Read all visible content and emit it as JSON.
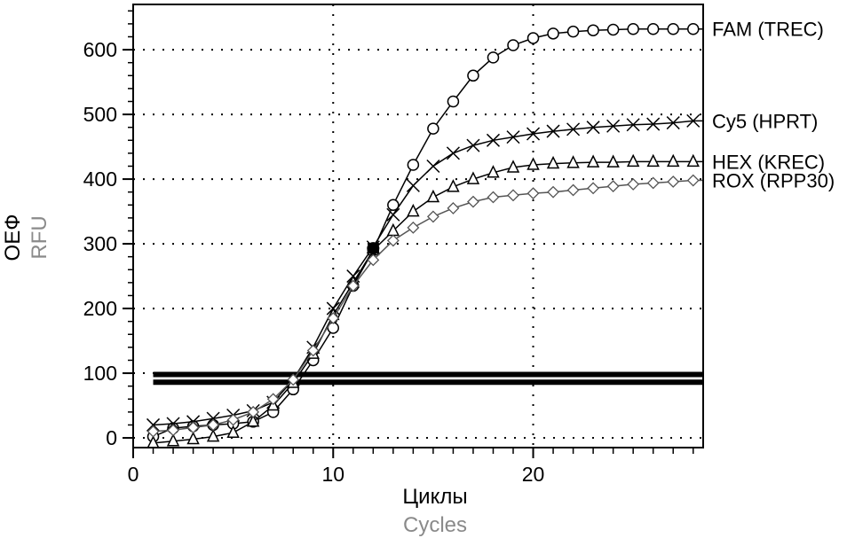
{
  "chart_data": {
    "type": "line",
    "xlabel": "Циклы",
    "xlabel_secondary": "Cycles",
    "ylabel": "ОЕФ",
    "ylabel_secondary": "RFU",
    "xlim": [
      0,
      28.5
    ],
    "ylim": [
      -15,
      670
    ],
    "x_ticks": [
      0,
      10,
      20
    ],
    "y_ticks": [
      0,
      100,
      200,
      300,
      400,
      500,
      600
    ],
    "grid": true,
    "threshold_lines": [
      98,
      86
    ],
    "x": [
      1,
      2,
      3,
      4,
      5,
      6,
      7,
      8,
      9,
      10,
      11,
      12,
      13,
      14,
      15,
      16,
      17,
      18,
      19,
      20,
      21,
      22,
      23,
      24,
      25,
      26,
      27,
      28
    ],
    "series": [
      {
        "name": "FAM (TREC)",
        "marker": "circle",
        "values": [
          2,
          15,
          18,
          20,
          22,
          25,
          40,
          75,
          120,
          170,
          235,
          290,
          360,
          422,
          478,
          520,
          560,
          588,
          607,
          618,
          625,
          628,
          630,
          631,
          632,
          632,
          632,
          632
        ]
      },
      {
        "name": "Cy5 (HPRT)",
        "marker": "x",
        "values": [
          20,
          22,
          25,
          30,
          35,
          42,
          55,
          90,
          140,
          200,
          250,
          295,
          345,
          390,
          420,
          440,
          452,
          460,
          465,
          470,
          474,
          477,
          480,
          482,
          484,
          485,
          487,
          490
        ]
      },
      {
        "name": "HEX (KREC)",
        "marker": "triangle",
        "values": [
          -8,
          -5,
          -2,
          2,
          8,
          25,
          50,
          85,
          130,
          190,
          240,
          290,
          320,
          350,
          372,
          388,
          400,
          410,
          418,
          422,
          424,
          425,
          426,
          426,
          427,
          427,
          427,
          427
        ]
      },
      {
        "name": "ROX (RPP30)",
        "marker": "diamond",
        "values": [
          10,
          12,
          16,
          20,
          28,
          40,
          60,
          90,
          135,
          185,
          235,
          275,
          305,
          325,
          342,
          355,
          365,
          372,
          375,
          378,
          380,
          383,
          386,
          389,
          392,
          394,
          396,
          398
        ]
      }
    ]
  }
}
